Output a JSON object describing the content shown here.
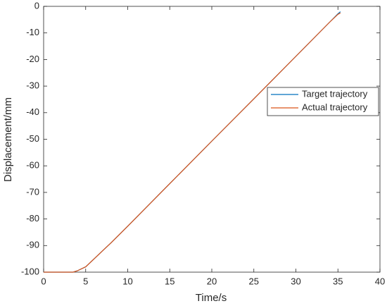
{
  "chart_data": {
    "type": "line",
    "x_label": "Time/s",
    "y_label": "Displacement/mm",
    "x": [
      0,
      1,
      2,
      3,
      3.5,
      4,
      5,
      6,
      7,
      8,
      10,
      15,
      20,
      25,
      30,
      34,
      35,
      35.3
    ],
    "series": [
      {
        "name": "Target trajectory",
        "color": "#0072bd",
        "values": [
          -100,
          -100,
          -100,
          -100,
          -100,
          -99.5,
          -98,
          -95,
          -92,
          -89,
          -82.7,
          -66.7,
          -50.7,
          -34.8,
          -18.8,
          -6,
          -2.8,
          -2
        ]
      },
      {
        "name": "Actual trajectory",
        "color": "#d95319",
        "values": [
          -100,
          -100,
          -100,
          -100,
          -100,
          -99.5,
          -98,
          -95,
          -92,
          -89,
          -82.7,
          -66.7,
          -50.7,
          -34.8,
          -18.8,
          -6,
          -3,
          -2.5
        ]
      }
    ],
    "xlim": [
      0,
      40
    ],
    "ylim": [
      -100,
      0
    ],
    "xticks": [
      0,
      5,
      10,
      15,
      20,
      25,
      30,
      35,
      40
    ],
    "yticks": [
      0,
      -10,
      -20,
      -30,
      -40,
      -50,
      -60,
      -70,
      -80,
      -90,
      -100
    ],
    "legend": "right"
  }
}
